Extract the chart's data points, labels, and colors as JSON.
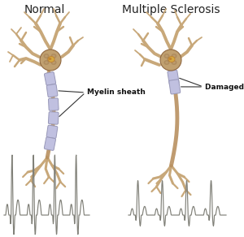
{
  "title_normal": "Normal",
  "title_ms": "Multiple Sclerosis",
  "label_myelin": "Myelin sheath",
  "label_damaged": "Damaged myelin",
  "bg_color": "#ffffff",
  "neuron_color": "#c8a87a",
  "neuron_dark": "#8a7050",
  "myelin_color": "#c0c0e0",
  "myelin_edge": "#9898b8",
  "axon_color": "#b89060",
  "title_fontsize": 10,
  "label_fontsize": 6.5,
  "signal_color": "#808078",
  "soma_color": "#c0a070",
  "soma_dark": "#906840",
  "nucleus_color": "#d4a840",
  "nucleus_dark": "#c08030"
}
